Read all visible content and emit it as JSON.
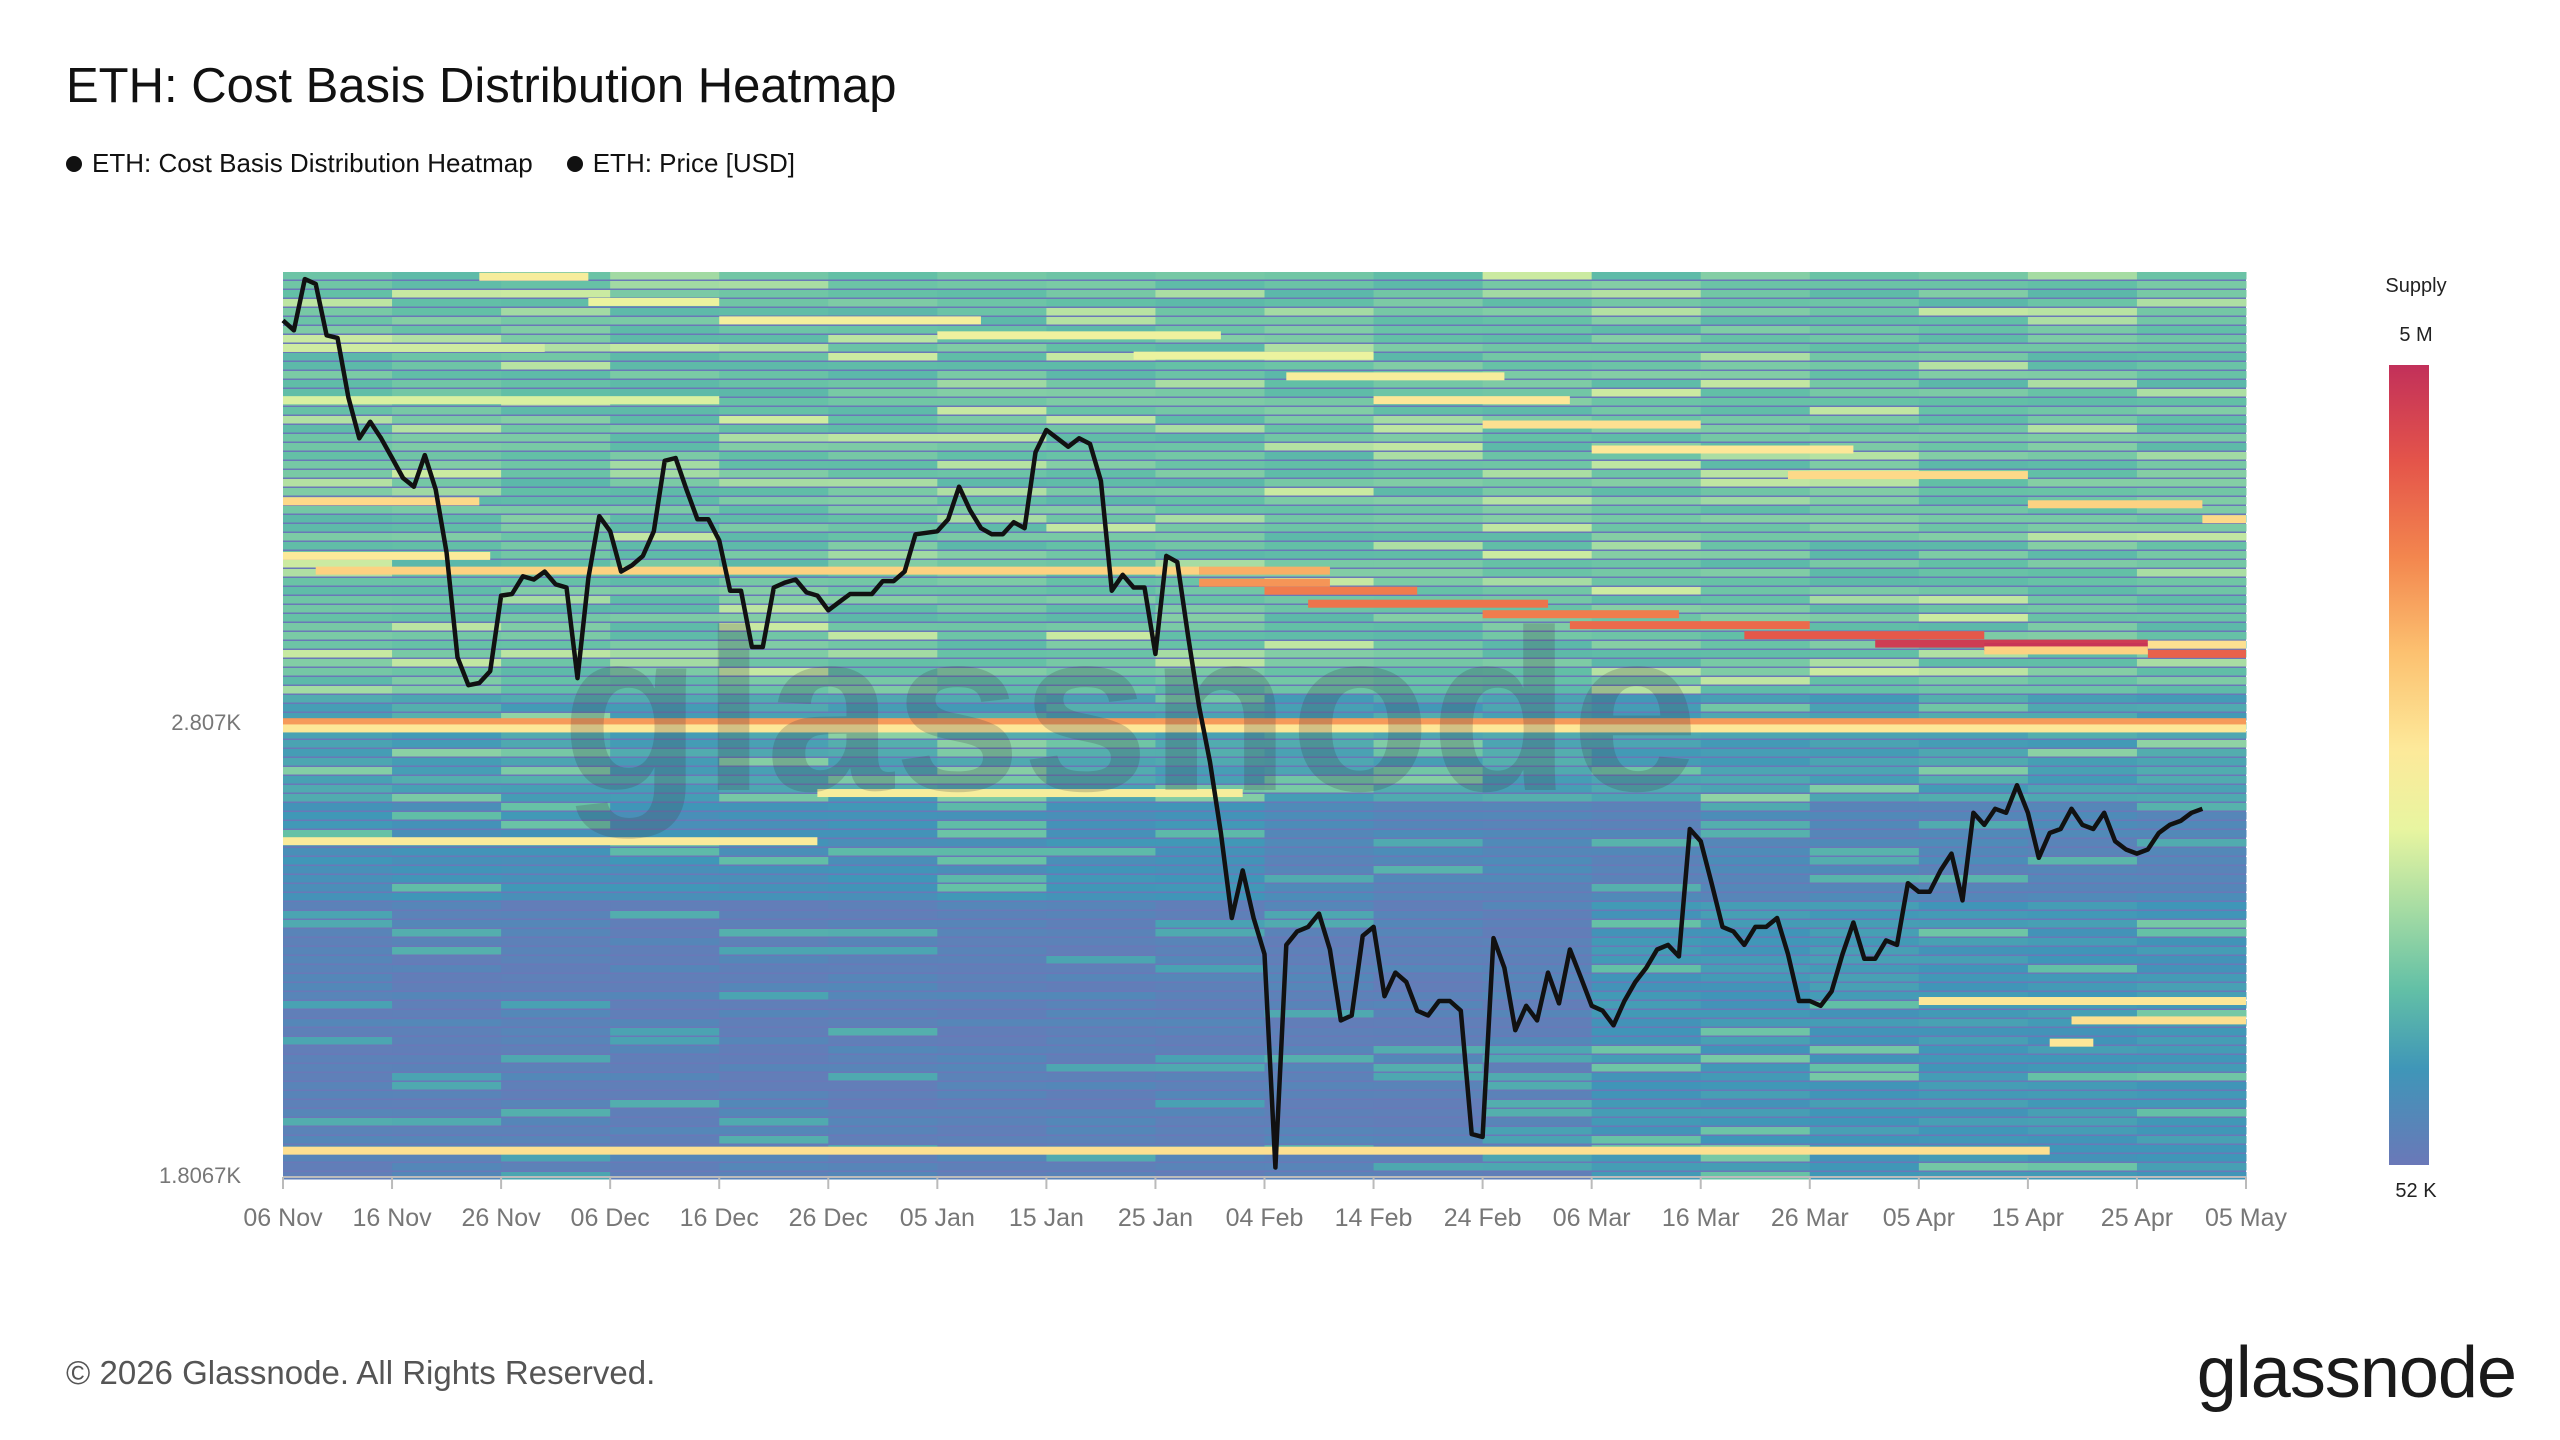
{
  "title": "ETH: Cost Basis Distribution Heatmap",
  "legend": [
    {
      "label": "ETH: Cost Basis Distribution Heatmap",
      "color": "#111111"
    },
    {
      "label": "ETH: Price [USD]",
      "color": "#111111"
    }
  ],
  "colorbar": {
    "title": "Supply",
    "max_label": "5 M",
    "min_label": "52 K",
    "colors": [
      "#6a78b8",
      "#3f96b8",
      "#63c0a6",
      "#a6dca3",
      "#e8f5a0",
      "#fde99a",
      "#fcc170",
      "#f3864e",
      "#e4544a",
      "#c2305a"
    ]
  },
  "watermark": "glassnode",
  "footer": "© 2026 Glassnode. All Rights Reserved.",
  "brand": "glassnode",
  "chart_data": {
    "type": "heatmap",
    "title": "ETH: Cost Basis Distribution Heatmap",
    "xlabel": "",
    "ylabel": "",
    "x_ticks": [
      "06 Nov",
      "16 Nov",
      "26 Nov",
      "06 Dec",
      "16 Dec",
      "26 Dec",
      "05 Jan",
      "15 Jan",
      "25 Jan",
      "04 Feb",
      "14 Feb",
      "24 Feb",
      "06 Mar",
      "16 Mar",
      "26 Mar",
      "05 Apr",
      "15 Apr",
      "25 Apr",
      "05 May"
    ],
    "y_ticks": [
      {
        "label": "2.807K",
        "value": 2807
      },
      {
        "label": "1.8067K",
        "value": 1806.7
      }
    ],
    "ylim": [
      1806.7,
      4350
    ],
    "y_scale": "log",
    "grid": false,
    "legend_position": "top-left",
    "heatmap_bands": [
      {
        "price": 2807,
        "day_start": 0,
        "day_end": 180,
        "level": 0.74
      },
      {
        "price": 2790,
        "day_start": 0,
        "day_end": 180,
        "level": 0.56
      },
      {
        "price": 3253,
        "day_start": 3,
        "day_end": 84,
        "level": 0.62
      },
      {
        "price": 3253,
        "day_start": 84,
        "day_end": 96,
        "level": 0.7
      },
      {
        "price": 3300,
        "day_start": 0,
        "day_end": 19,
        "level": 0.55
      },
      {
        "price": 3215,
        "day_start": 84,
        "day_end": 96,
        "level": 0.75
      },
      {
        "price": 3190,
        "day_start": 90,
        "day_end": 104,
        "level": 0.8
      },
      {
        "price": 3150,
        "day_start": 94,
        "day_end": 116,
        "level": 0.82
      },
      {
        "price": 3118,
        "day_start": 110,
        "day_end": 128,
        "level": 0.8
      },
      {
        "price": 3085,
        "day_start": 118,
        "day_end": 140,
        "level": 0.84
      },
      {
        "price": 3055,
        "day_start": 134,
        "day_end": 156,
        "level": 0.88
      },
      {
        "price": 3030,
        "day_start": 146,
        "day_end": 171,
        "level": 0.96
      },
      {
        "price": 3020,
        "day_start": 156,
        "day_end": 171,
        "level": 0.98
      },
      {
        "price": 3000,
        "day_start": 171,
        "day_end": 180,
        "level": 0.86
      },
      {
        "price": 3010,
        "day_start": 156,
        "day_end": 171,
        "level": 0.62
      },
      {
        "price": 3027,
        "day_start": 171,
        "day_end": 180,
        "level": 0.58
      },
      {
        "price": 4330,
        "day_start": 18,
        "day_end": 28,
        "level": 0.52
      },
      {
        "price": 4225,
        "day_start": 28,
        "day_end": 40,
        "level": 0.46
      },
      {
        "price": 4150,
        "day_start": 40,
        "day_end": 64,
        "level": 0.5
      },
      {
        "price": 4090,
        "day_start": 60,
        "day_end": 86,
        "level": 0.48
      },
      {
        "price": 4010,
        "day_start": 78,
        "day_end": 100,
        "level": 0.46
      },
      {
        "price": 3930,
        "day_start": 92,
        "day_end": 112,
        "level": 0.52
      },
      {
        "price": 3840,
        "day_start": 100,
        "day_end": 118,
        "level": 0.56
      },
      {
        "price": 3750,
        "day_start": 110,
        "day_end": 130,
        "level": 0.58
      },
      {
        "price": 3660,
        "day_start": 120,
        "day_end": 144,
        "level": 0.56
      },
      {
        "price": 3570,
        "day_start": 138,
        "day_end": 160,
        "level": 0.6
      },
      {
        "price": 3470,
        "day_start": 160,
        "day_end": 176,
        "level": 0.62
      },
      {
        "price": 3420,
        "day_start": 176,
        "day_end": 180,
        "level": 0.6
      },
      {
        "price": 4040,
        "day_start": 0,
        "day_end": 24,
        "level": 0.4
      },
      {
        "price": 3840,
        "day_start": 0,
        "day_end": 40,
        "level": 0.42
      },
      {
        "price": 3480,
        "day_start": 0,
        "day_end": 18,
        "level": 0.6
      },
      {
        "price": 2620,
        "day_start": 49,
        "day_end": 88,
        "level": 0.52
      },
      {
        "price": 2500,
        "day_start": 0,
        "day_end": 49,
        "level": 0.54
      },
      {
        "price": 2140,
        "day_start": 150,
        "day_end": 180,
        "level": 0.56
      },
      {
        "price": 2100,
        "day_start": 164,
        "day_end": 180,
        "level": 0.58
      },
      {
        "price": 2055,
        "day_start": 162,
        "day_end": 166,
        "level": 0.56
      },
      {
        "price": 1850,
        "day_start": 0,
        "day_end": 162,
        "level": 0.58
      }
    ],
    "series": [
      {
        "name": "ETH: Price [USD]",
        "x_start": "06 Nov",
        "step_days": 1,
        "values": [
          4150,
          4110,
          4320,
          4300,
          4090,
          4080,
          3850,
          3700,
          3760,
          3700,
          3630,
          3560,
          3530,
          3640,
          3520,
          3310,
          2990,
          2910,
          2916,
          2950,
          3175,
          3180,
          3235,
          3225,
          3250,
          3210,
          3200,
          2930,
          3230,
          3430,
          3380,
          3250,
          3270,
          3300,
          3380,
          3620,
          3630,
          3520,
          3420,
          3420,
          3350,
          3190,
          3190,
          3020,
          3020,
          3200,
          3215,
          3225,
          3185,
          3175,
          3130,
          3155,
          3180,
          3180,
          3180,
          3220,
          3220,
          3250,
          3370,
          3375,
          3380,
          3420,
          3530,
          3450,
          3390,
          3370,
          3370,
          3410,
          3390,
          3650,
          3730,
          3700,
          3670,
          3700,
          3680,
          3550,
          3190,
          3240,
          3200,
          3200,
          3000,
          3300,
          3280,
          3050,
          2850,
          2700,
          2520,
          2320,
          2430,
          2320,
          2240,
          1820,
          2260,
          2290,
          2300,
          2330,
          2250,
          2100,
          2110,
          2280,
          2300,
          2150,
          2200,
          2180,
          2120,
          2110,
          2140,
          2140,
          2120,
          1880,
          1875,
          2275,
          2210,
          2080,
          2130,
          2100,
          2200,
          2135,
          2250,
          2190,
          2130,
          2120,
          2090,
          2140,
          2180,
          2210,
          2250,
          2260,
          2235,
          2530,
          2500,
          2400,
          2300,
          2290,
          2260,
          2300,
          2300,
          2320,
          2240,
          2140,
          2140,
          2130,
          2160,
          2240,
          2310,
          2230,
          2230,
          2270,
          2260,
          2400,
          2380,
          2380,
          2430,
          2470,
          2360,
          2570,
          2540,
          2580,
          2570,
          2640,
          2570,
          2460,
          2520,
          2530,
          2580,
          2540,
          2530,
          2570,
          2500,
          2480,
          2470,
          2480,
          2520,
          2540,
          2550,
          2570,
          2580
        ]
      }
    ]
  }
}
